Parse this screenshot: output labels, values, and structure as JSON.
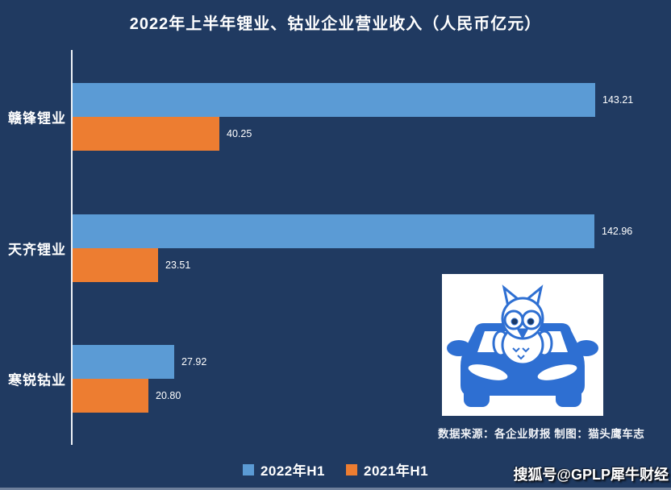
{
  "title": "2022年上半年锂业、钴业企业营业收入（人民币亿元）",
  "chart_data": {
    "type": "bar",
    "orientation": "horizontal",
    "title": "2022年上半年锂业、钴业企业营业收入（人民币亿元）",
    "categories": [
      "赣锋锂业",
      "天齐锂业",
      "寒锐钴业"
    ],
    "series": [
      {
        "name": "2022年H1",
        "color": "#5b9bd5",
        "values": [
          143.21,
          142.96,
          27.92
        ]
      },
      {
        "name": "2021年H1",
        "color": "#ed7d31",
        "values": [
          40.25,
          23.51,
          20.8
        ]
      }
    ],
    "xlim": [
      0,
      164
    ],
    "grid": false,
    "value_labels_shown": true,
    "legend_position": "bottom-center"
  },
  "footer": {
    "source": "数据来源：各企业财报  制图：猫头鹰车志",
    "watermark": "搜狐号@GPLP犀牛财经"
  },
  "logo": {
    "name": "owl-car-logo",
    "background": "#ffffff",
    "car_color": "#2e6fd2",
    "pupil_color": "#1c3a66"
  },
  "colors": {
    "background": "#203a61",
    "bar_2022": "#5b9bd5",
    "bar_2021": "#ed7d31",
    "axis_line": "#eef2f7",
    "text": "#ffffff"
  }
}
